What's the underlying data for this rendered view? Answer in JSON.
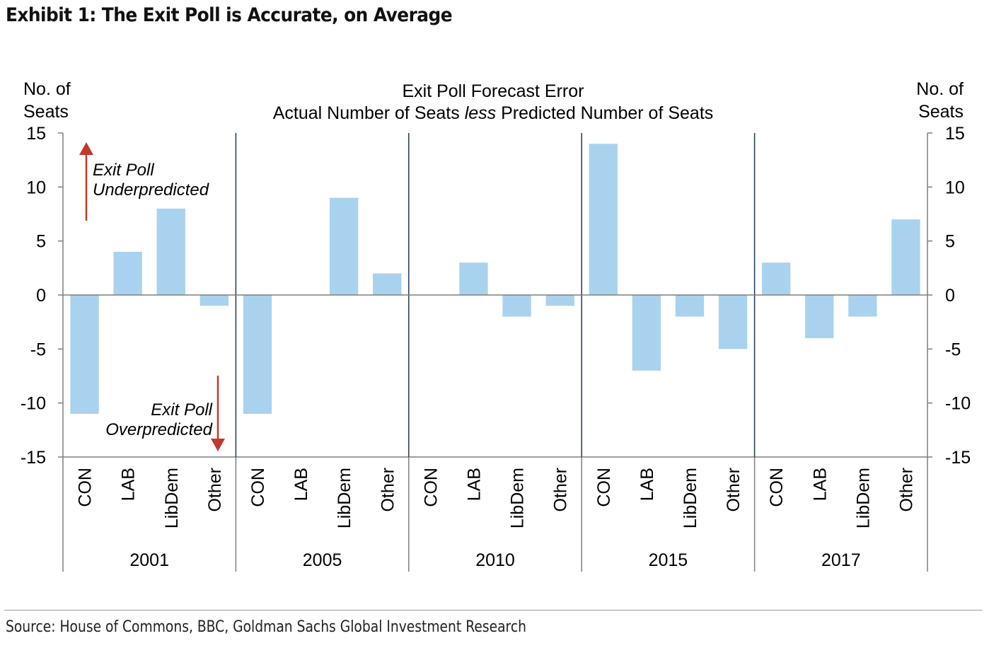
{
  "exhibit": {
    "title": "Exhibit 1: The Exit Poll is Accurate, on Average",
    "source": "Source: House of Commons, BBC, Goldman Sachs Global Investment Research"
  },
  "chart_data": {
    "type": "bar",
    "title": "Exit Poll Forecast Error",
    "subtitle_parts": [
      "Actual Number of Seats ",
      "less",
      " Predicted Number of Seats"
    ],
    "y_label_left": [
      "No. of",
      "Seats"
    ],
    "y_label_right": [
      "No. of",
      "Seats"
    ],
    "ylim": [
      -15,
      15
    ],
    "yticks": [
      15,
      10,
      5,
      0,
      -5,
      -10,
      -15
    ],
    "groups": [
      {
        "label": "2001",
        "categories": [
          "CON",
          "LAB",
          "LibDem",
          "Other"
        ],
        "values": [
          -11,
          4,
          8,
          -1
        ]
      },
      {
        "label": "2005",
        "categories": [
          "CON",
          "LAB",
          "LibDem",
          "Other"
        ],
        "values": [
          -11,
          0,
          9,
          2
        ]
      },
      {
        "label": "2010",
        "categories": [
          "CON",
          "LAB",
          "LibDem",
          "Other"
        ],
        "values": [
          0,
          3,
          -2,
          -1
        ]
      },
      {
        "label": "2015",
        "categories": [
          "CON",
          "LAB",
          "LibDem",
          "Other"
        ],
        "values": [
          14,
          -7,
          -2,
          -5
        ]
      },
      {
        "label": "2017",
        "categories": [
          "CON",
          "LAB",
          "LibDem",
          "Other"
        ],
        "values": [
          3,
          -4,
          -2,
          7
        ]
      }
    ],
    "annotations": {
      "up": [
        "Exit Poll",
        "Underpredicted"
      ],
      "down": [
        "Exit Poll",
        "Overpredicted"
      ]
    },
    "colors": {
      "bar": "#a9d2ef",
      "arrow": "#c0392b",
      "axis": "#7f7f7f",
      "divider": "#1f3a5a"
    },
    "grid": false,
    "legend": "none"
  }
}
